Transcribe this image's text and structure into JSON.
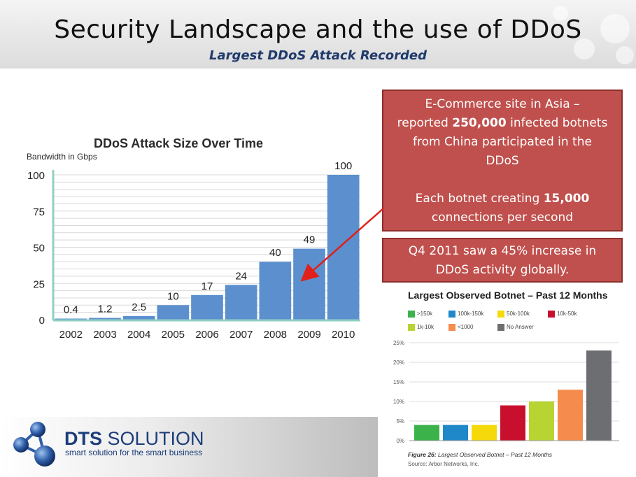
{
  "header": {
    "title": "Security Landscape and the use of DDoS",
    "subtitle": "Largest DDoS Attack Recorded"
  },
  "callout_top": {
    "line1": "E-Commerce site in Asia –",
    "line2_pre": "reported ",
    "line2_bold": "250,000",
    "line2_post": " infected botnets",
    "line3": "from China participated in the",
    "line4": "DDoS",
    "line5_pre": "Each botnet creating ",
    "line5_bold": "15,000",
    "line6": "connections per second"
  },
  "callout_bottom": {
    "line1": "Q4 2011 saw a 45% increase in",
    "line2": "DDoS activity globally."
  },
  "logo": {
    "name_bold": "DTS",
    "name_rest": " SOLUTION",
    "tagline": "smart solution for the smart business"
  },
  "chart_data": [
    {
      "type": "bar",
      "title": "DDoS Attack Size Over Time",
      "ylabel": "Bandwidth in Gbps",
      "categories": [
        "2002",
        "2003",
        "2004",
        "2005",
        "2006",
        "2007",
        "2008",
        "2009",
        "2010"
      ],
      "values": [
        0.4,
        1.2,
        2.5,
        10,
        17,
        24,
        40,
        49,
        100
      ],
      "value_labels": [
        "0.4",
        "1.2",
        "2.5",
        "10",
        "17",
        "24",
        "40",
        "49",
        "100"
      ],
      "ylim": [
        0,
        100
      ],
      "yticks": [
        0,
        25,
        50,
        75,
        100
      ],
      "grid": true,
      "color": "#5b8fce"
    },
    {
      "type": "bar",
      "title": "Largest Observed Botnet – Past 12 Months",
      "categories": [
        ">150k",
        "100k-150k",
        "50k-100k",
        "10k-50k",
        "1k-10k",
        "<1000",
        "No Answer"
      ],
      "values": [
        4,
        4,
        4,
        9,
        10,
        13,
        23
      ],
      "colors": [
        "#3bb34a",
        "#1f88c8",
        "#f5d90a",
        "#c8102e",
        "#b8d432",
        "#f58b4c",
        "#6d6e71"
      ],
      "ylim": [
        0,
        25
      ],
      "yticks": [
        "0%",
        "5%",
        "10%",
        "15%",
        "20%",
        "25%"
      ],
      "legend": "top",
      "grid": true,
      "caption_bold": "Figure 26:",
      "caption": " Largest Observed Botnet – Past 12 Months",
      "source": "Source: Arbor Networks, Inc."
    }
  ]
}
